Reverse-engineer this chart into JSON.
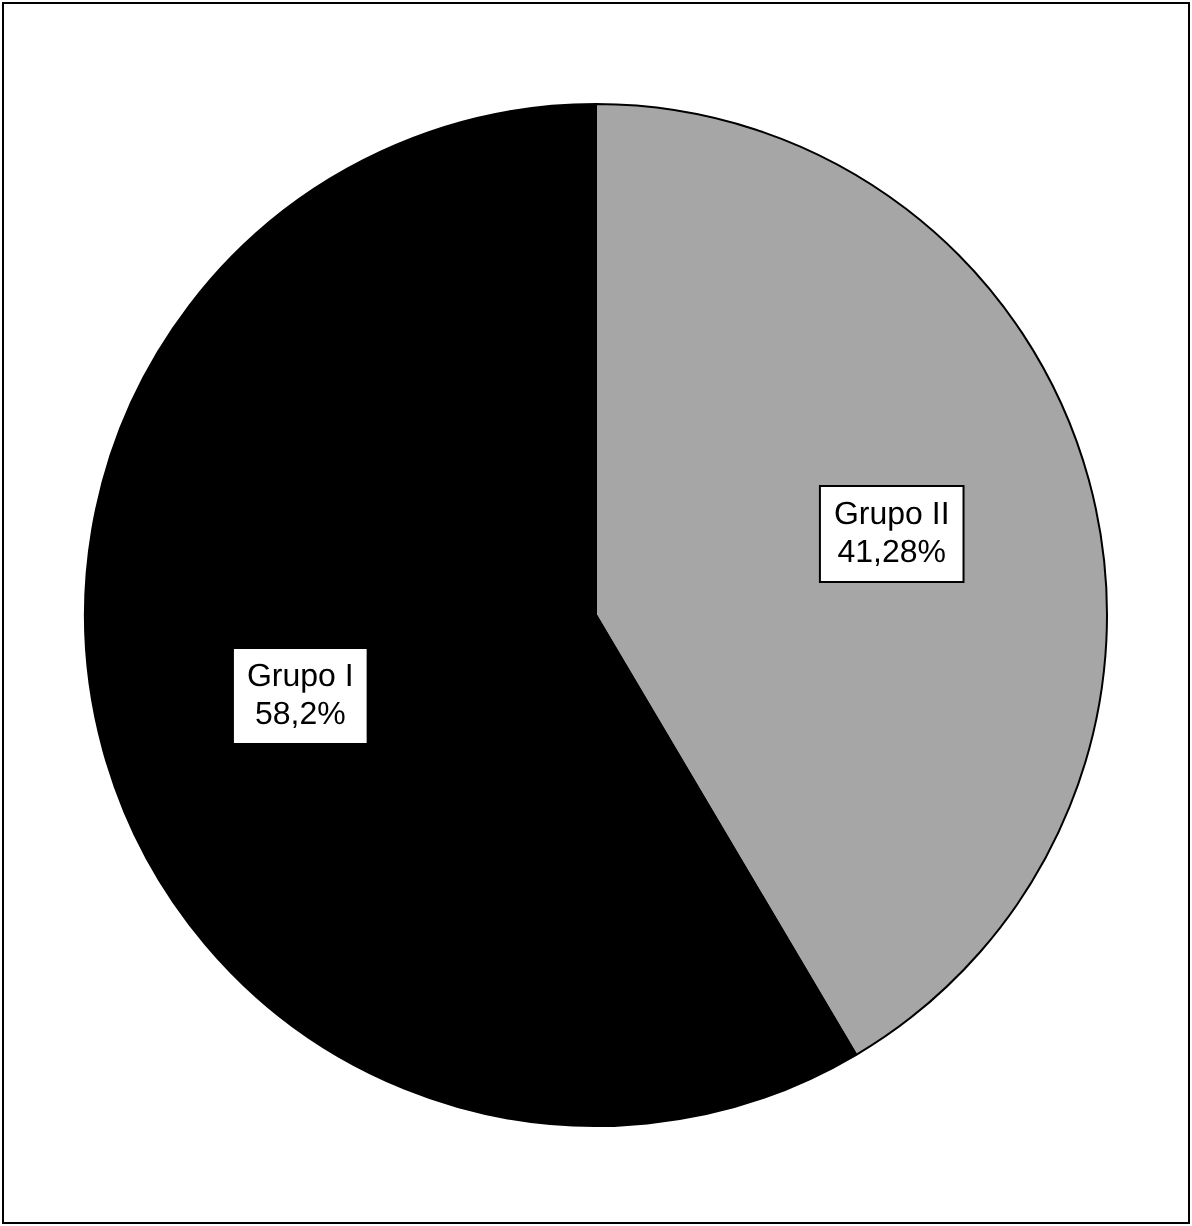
{
  "chart_data": {
    "type": "pie",
    "categories": [
      "Grupo II",
      "Grupo I"
    ],
    "values": [
      41.28,
      58.2
    ],
    "colors": [
      "#a6a6a6",
      "#000000"
    ],
    "value_labels": [
      "41,28%",
      "58,2%"
    ],
    "legend": false
  }
}
